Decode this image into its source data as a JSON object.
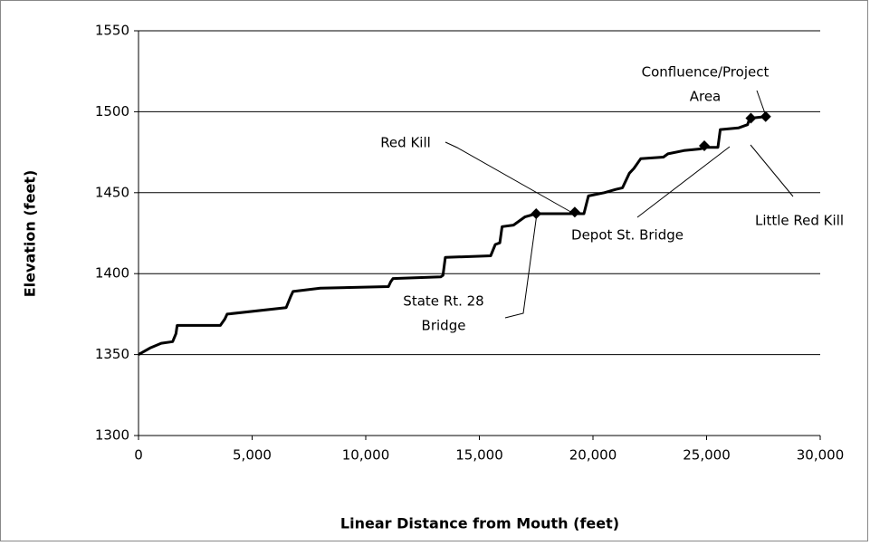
{
  "chart_data": {
    "type": "line",
    "x_label": "Linear Distance from Mouth (feet)",
    "y_label": "Elevation (feet)",
    "x": [
      0,
      500,
      1000,
      1500,
      1650,
      1700,
      3600,
      3800,
      3900,
      6500,
      6700,
      6800,
      8000,
      11000,
      11100,
      11200,
      13300,
      13400,
      13500,
      15500,
      15700,
      15900,
      16000,
      16500,
      17000,
      17500,
      19600,
      19800,
      20500,
      21000,
      21300,
      21600,
      21800,
      22100,
      23100,
      23300,
      24000,
      24700,
      25000,
      25500,
      25600,
      26400,
      26800,
      26900,
      27600
    ],
    "values": [
      1350,
      1354,
      1357,
      1358,
      1363,
      1368,
      1368,
      1372,
      1375,
      1379,
      1386,
      1389,
      1391,
      1392,
      1395,
      1397,
      1398,
      1399,
      1410,
      1411,
      1418,
      1419,
      1429,
      1430,
      1435,
      1437,
      1437,
      1448,
      1450,
      1452,
      1453,
      1462,
      1465,
      1471,
      1472,
      1474,
      1476,
      1477,
      1478,
      1478,
      1489,
      1490,
      1492,
      1496,
      1497
    ],
    "color": "#000000",
    "markers": {
      "x": [
        17500,
        19200,
        24900,
        26950,
        27600
      ],
      "values": [
        1437,
        1438,
        1479,
        1496,
        1497
      ]
    },
    "annotations": [
      {
        "lines": [
          "State Rt. 28",
          "Bridge"
        ]
      },
      {
        "lines": [
          "Red Kill"
        ]
      },
      {
        "lines": [
          "Depot St. Bridge"
        ]
      },
      {
        "lines": [
          "Little Red Kill"
        ]
      },
      {
        "lines": [
          "Confluence/Project",
          "Area"
        ]
      }
    ],
    "xlim": [
      0,
      30000
    ],
    "xticks": [
      0,
      {
        "value": 5000,
        "label": "5,000"
      },
      {
        "value": 10000,
        "label": "10,000"
      },
      {
        "value": 15000,
        "label": "15,000"
      },
      {
        "value": 20000,
        "label": "20,000"
      },
      {
        "value": 25000,
        "label": "25,000"
      },
      {
        "value": 30000,
        "label": "30,000"
      }
    ],
    "ylim": [
      1300,
      1550
    ],
    "yticks": [
      1300,
      1350,
      1400,
      1450,
      1500,
      1550
    ],
    "grid": true
  }
}
